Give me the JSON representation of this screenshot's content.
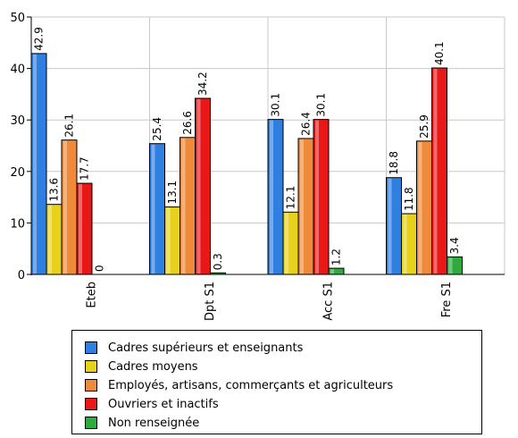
{
  "chart_data": {
    "type": "bar",
    "categories": [
      "Eteb",
      "Dpt S1",
      "Acc S1",
      "Fre S1"
    ],
    "series": [
      {
        "name": "Cadres supérieurs et enseignants",
        "color": "#2f7fe0",
        "values": [
          42.9,
          25.4,
          30.1,
          18.8
        ],
        "labels": [
          "42.9",
          "25.4",
          "30.1",
          "18.8"
        ]
      },
      {
        "name": "Cadres moyens",
        "color": "#e6d21c",
        "values": [
          13.6,
          13.1,
          12.1,
          11.8
        ],
        "labels": [
          "13.6",
          "13.1",
          "12.1",
          "11.8"
        ]
      },
      {
        "name": "Employés, artisans, commerçants et agriculteurs",
        "color": "#ee8a3a",
        "values": [
          26.1,
          26.6,
          26.4,
          25.9
        ],
        "labels": [
          "26.1",
          "26.6",
          "26.4",
          "25.9"
        ]
      },
      {
        "name": "Ouvriers et inactifs",
        "color": "#e81818",
        "values": [
          17.7,
          34.2,
          30.1,
          40.1
        ],
        "labels": [
          "17.7",
          "34.2",
          "30.1",
          "40.1"
        ]
      },
      {
        "name": "Non renseignée",
        "color": "#2faa3c",
        "values": [
          0,
          0.3,
          1.2,
          3.4
        ],
        "labels": [
          "0",
          "0.3",
          "1.2",
          "3.4"
        ]
      }
    ],
    "ylim": [
      0,
      50
    ],
    "yticks": [
      "0",
      "10",
      "20",
      "30",
      "40",
      "50"
    ],
    "grid": true,
    "legend_position": "bottom"
  }
}
